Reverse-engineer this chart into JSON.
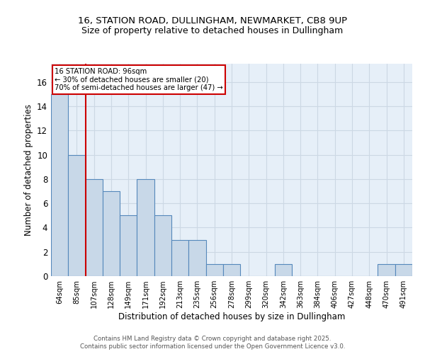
{
  "title1": "16, STATION ROAD, DULLINGHAM, NEWMARKET, CB8 9UP",
  "title2": "Size of property relative to detached houses in Dullingham",
  "xlabel": "Distribution of detached houses by size in Dullingham",
  "ylabel": "Number of detached properties",
  "categories": [
    "64sqm",
    "85sqm",
    "107sqm",
    "128sqm",
    "149sqm",
    "171sqm",
    "192sqm",
    "213sqm",
    "235sqm",
    "256sqm",
    "278sqm",
    "299sqm",
    "320sqm",
    "342sqm",
    "363sqm",
    "384sqm",
    "406sqm",
    "427sqm",
    "448sqm",
    "470sqm",
    "491sqm"
  ],
  "values": [
    15,
    10,
    8,
    7,
    5,
    8,
    5,
    3,
    3,
    1,
    1,
    0,
    0,
    1,
    0,
    0,
    0,
    0,
    0,
    1,
    1
  ],
  "bar_color": "#c8d8e8",
  "bar_edge_color": "#5588bb",
  "red_line_x": 1.5,
  "annotation_title": "16 STATION ROAD: 96sqm",
  "annotation_line1": "← 30% of detached houses are smaller (20)",
  "annotation_line2": "70% of semi-detached houses are larger (47) →",
  "annotation_box_color": "#ffffff",
  "annotation_box_edge": "#cc0000",
  "red_line_color": "#cc0000",
  "ylim": [
    0,
    17.5
  ],
  "yticks": [
    0,
    2,
    4,
    6,
    8,
    10,
    12,
    14,
    16
  ],
  "grid_color": "#ccd8e4",
  "bg_color": "#e6eff8",
  "footer1": "Contains HM Land Registry data © Crown copyright and database right 2025.",
  "footer2": "Contains public sector information licensed under the Open Government Licence v3.0."
}
